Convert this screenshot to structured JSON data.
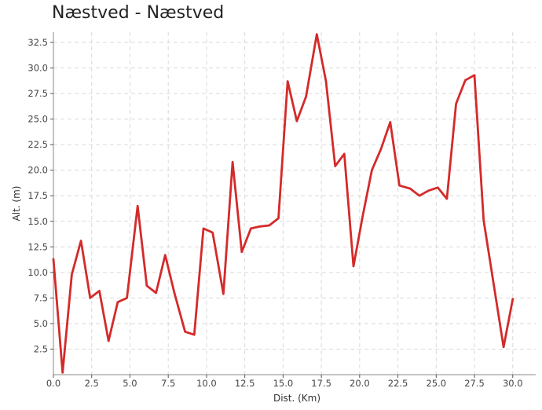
{
  "chart_data": {
    "type": "line",
    "title": "Næstved - Næstved",
    "xlabel": "Dist. (Km)",
    "ylabel": "Alt. (m)",
    "xlim": [
      0,
      31.5
    ],
    "ylim": [
      0,
      33.5
    ],
    "grid": true,
    "line_color": "#d42a2a",
    "x_ticks": [
      "0.0",
      "2.5",
      "5.0",
      "7.5",
      "10.0",
      "12.5",
      "15.0",
      "17.5",
      "20.0",
      "22.5",
      "25.0",
      "27.5",
      "30.0"
    ],
    "y_ticks": [
      "2.5",
      "5.0",
      "7.5",
      "10.0",
      "12.5",
      "15.0",
      "17.5",
      "20.0",
      "22.5",
      "25.0",
      "27.5",
      "30.0",
      "32.5"
    ],
    "series": [
      {
        "x": [
          0.0,
          0.6,
          1.2,
          1.8,
          2.4,
          3.0,
          3.6,
          4.2,
          4.8,
          5.5,
          6.1,
          6.7,
          7.3,
          7.9,
          8.6,
          9.2,
          9.8,
          10.4,
          11.1,
          11.7,
          12.3,
          12.9,
          13.5,
          14.1,
          14.7,
          15.3,
          15.9,
          16.5,
          17.2,
          17.8,
          18.4,
          19.0,
          19.6,
          20.2,
          20.8,
          21.4,
          22.0,
          22.6,
          23.3,
          23.9,
          24.5,
          25.1,
          25.7,
          26.3,
          26.9,
          27.5,
          28.1,
          28.8,
          29.4,
          30.0
        ],
        "y": [
          11.3,
          0.2,
          9.8,
          13.1,
          7.5,
          8.2,
          3.3,
          7.1,
          7.5,
          16.5,
          8.7,
          8.0,
          11.7,
          8.0,
          4.2,
          3.9,
          14.3,
          13.9,
          7.9,
          20.8,
          12.0,
          14.3,
          14.5,
          14.6,
          15.3,
          28.7,
          24.8,
          27.2,
          33.3,
          28.7,
          20.4,
          21.6,
          10.6,
          15.5,
          20.0,
          22.1,
          24.7,
          18.5,
          18.2,
          17.5,
          18.0,
          18.3,
          17.2,
          26.5,
          28.8,
          29.3,
          15.1,
          8.4,
          2.7,
          7.4
        ]
      }
    ]
  }
}
